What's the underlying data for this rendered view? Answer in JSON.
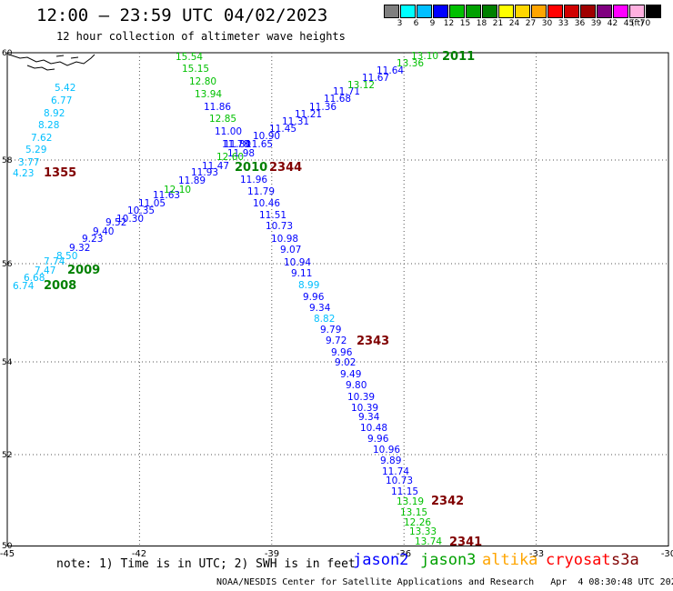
{
  "header": {
    "title": "12:00 – 23:59 UTC 04/02/2023",
    "subtitle": "12 hour collection of altimeter wave heights"
  },
  "color_scale": {
    "values": [
      "3",
      "6",
      "9",
      "12",
      "15",
      "18",
      "21",
      "24",
      "27",
      "30",
      "33",
      "36",
      "39",
      "42",
      "45",
      "70"
    ],
    "unit": "(ft)",
    "colors": [
      "#7f7f7f",
      "#00ffff",
      "#00bfff",
      "#0000ff",
      "#00c000",
      "#00a000",
      "#008000",
      "#ffff00",
      "#ffd700",
      "#ffa500",
      "#ff0000",
      "#d00000",
      "#a00000",
      "#800080",
      "#ff00ff",
      "#ffb0e0",
      "#000000"
    ]
  },
  "map": {
    "lon_labels": [
      "-45",
      "-42",
      "-39",
      "-36",
      "-33",
      "-30"
    ],
    "lat_labels": [
      "60",
      "58",
      "56",
      "54",
      "52",
      "50"
    ],
    "tracks": [
      {
        "name": "track-2008-2009",
        "points": [
          {
            "t": "5.42",
            "c": "#00bfff"
          },
          {
            "t": "6.77",
            "c": "#00bfff"
          },
          {
            "t": "8.92",
            "c": "#00bfff"
          },
          {
            "t": "8.28",
            "c": "#00bfff"
          },
          {
            "t": "7.62",
            "c": "#00bfff"
          },
          {
            "t": "5.29",
            "c": "#00bfff"
          },
          {
            "t": "3.77",
            "c": "#00bfff"
          },
          {
            "t": "4.23",
            "c": "#00bfff"
          }
        ]
      },
      {
        "name": "track-2343",
        "points": [
          {
            "t": "15.54",
            "c": "#00c000"
          },
          {
            "t": "15.15",
            "c": "#00c000"
          },
          {
            "t": "12.80",
            "c": "#00c000"
          },
          {
            "t": "13.94",
            "c": "#00c000"
          },
          {
            "t": "11.86",
            "c": "#0000ff"
          },
          {
            "t": "12.85",
            "c": "#00c000"
          },
          {
            "t": "11.00",
            "c": "#0000ff"
          },
          {
            "t": "11.78",
            "c": "#0000ff"
          },
          {
            "t": "11.65",
            "c": "#0000ff"
          },
          {
            "t": "11.98",
            "c": "#0000ff"
          },
          {
            "t": "11.96",
            "c": "#0000ff"
          },
          {
            "t": "11.79",
            "c": "#0000ff"
          },
          {
            "t": "10.46",
            "c": "#0000ff"
          },
          {
            "t": "11.51",
            "c": "#0000ff"
          },
          {
            "t": "10.73",
            "c": "#0000ff"
          },
          {
            "t": "10.98",
            "c": "#0000ff"
          },
          {
            "t": "9.07",
            "c": "#0000ff"
          },
          {
            "t": "10.94",
            "c": "#0000ff"
          },
          {
            "t": "9.11",
            "c": "#0000ff"
          },
          {
            "t": "8.99",
            "c": "#00bfff"
          },
          {
            "t": "9.96",
            "c": "#0000ff"
          },
          {
            "t": "9.34",
            "c": "#0000ff"
          },
          {
            "t": "8.82",
            "c": "#00bfff"
          },
          {
            "t": "9.79",
            "c": "#0000ff"
          },
          {
            "t": "9.72",
            "c": "#0000ff"
          },
          {
            "t": "9.96",
            "c": "#0000ff"
          },
          {
            "t": "9.02",
            "c": "#0000ff"
          },
          {
            "t": "9.49",
            "c": "#0000ff"
          },
          {
            "t": "9.80",
            "c": "#0000ff"
          },
          {
            "t": "10.39",
            "c": "#0000ff"
          },
          {
            "t": "10.39",
            "c": "#0000ff"
          },
          {
            "t": "9.34",
            "c": "#0000ff"
          },
          {
            "t": "10.48",
            "c": "#0000ff"
          },
          {
            "t": "9.96",
            "c": "#0000ff"
          },
          {
            "t": "10.96",
            "c": "#0000ff"
          },
          {
            "t": "9.89",
            "c": "#0000ff"
          },
          {
            "t": "11.74",
            "c": "#0000ff"
          },
          {
            "t": "10.73",
            "c": "#0000ff"
          },
          {
            "t": "11.15",
            "c": "#0000ff"
          },
          {
            "t": "13.19",
            "c": "#00c000"
          },
          {
            "t": "13.15",
            "c": "#00c000"
          },
          {
            "t": "12.26",
            "c": "#00c000"
          },
          {
            "t": "13.33",
            "c": "#00c000"
          },
          {
            "t": "13.74",
            "c": "#00c000"
          }
        ]
      },
      {
        "name": "track-2011",
        "points": [
          {
            "t": "6.74",
            "c": "#00bfff"
          },
          {
            "t": "6.68",
            "c": "#00bfff"
          },
          {
            "t": "7.47",
            "c": "#00bfff"
          },
          {
            "t": "7.74",
            "c": "#00bfff"
          },
          {
            "t": "8.50",
            "c": "#00bfff"
          },
          {
            "t": "9.32",
            "c": "#0000ff"
          },
          {
            "t": "9.23",
            "c": "#0000ff"
          },
          {
            "t": "9.40",
            "c": "#0000ff"
          },
          {
            "t": "9.52",
            "c": "#0000ff"
          },
          {
            "t": "10.30",
            "c": "#0000ff"
          },
          {
            "t": "10.35",
            "c": "#0000ff"
          },
          {
            "t": "11.05",
            "c": "#0000ff"
          },
          {
            "t": "11.63",
            "c": "#0000ff"
          },
          {
            "t": "12.10",
            "c": "#00c000"
          },
          {
            "t": "11.89",
            "c": "#0000ff"
          },
          {
            "t": "11.93",
            "c": "#0000ff"
          },
          {
            "t": "11.47",
            "c": "#0000ff"
          },
          {
            "t": "12.60",
            "c": "#00c000"
          },
          {
            "t": "11.80",
            "c": "#0000ff"
          },
          {
            "t": "10.90",
            "c": "#0000ff"
          },
          {
            "t": "11.45",
            "c": "#0000ff"
          },
          {
            "t": "11.31",
            "c": "#0000ff"
          },
          {
            "t": "11.21",
            "c": "#0000ff"
          },
          {
            "t": "11.36",
            "c": "#0000ff"
          },
          {
            "t": "11.68",
            "c": "#0000ff"
          },
          {
            "t": "11.71",
            "c": "#0000ff"
          },
          {
            "t": "13.12",
            "c": "#00c000"
          },
          {
            "t": "11.67",
            "c": "#0000ff"
          },
          {
            "t": "11.64",
            "c": "#0000ff"
          },
          {
            "t": "13.36",
            "c": "#00c000"
          },
          {
            "t": "13.10",
            "c": "#00c000"
          }
        ]
      }
    ],
    "pass_labels": [
      {
        "t": "1355",
        "c": "#800000"
      },
      {
        "t": "2009",
        "c": "#008000"
      },
      {
        "t": "2008",
        "c": "#008000"
      },
      {
        "t": "2010",
        "c": "#008000"
      },
      {
        "t": "2344",
        "c": "#800000"
      },
      {
        "t": "2011",
        "c": "#008000"
      },
      {
        "t": "2343",
        "c": "#800000"
      },
      {
        "t": "2342",
        "c": "#800000"
      },
      {
        "t": "2341",
        "c": "#800000"
      }
    ]
  },
  "note": "note: 1) Time is in UTC; 2) SWH is in feet",
  "satellites": [
    {
      "label": "jason2",
      "color": "#0000ff"
    },
    {
      "label": "jason3",
      "color": "#00a000"
    },
    {
      "label": "altika",
      "color": "#ffa500"
    },
    {
      "label": "cryosat",
      "color": "#ff0000"
    },
    {
      "label": "s3a",
      "color": "#800000"
    }
  ],
  "footer": "NOAA/NESDIS Center for Satellite Applications and Research   Apr  4 08:30:48 UTC 2023"
}
